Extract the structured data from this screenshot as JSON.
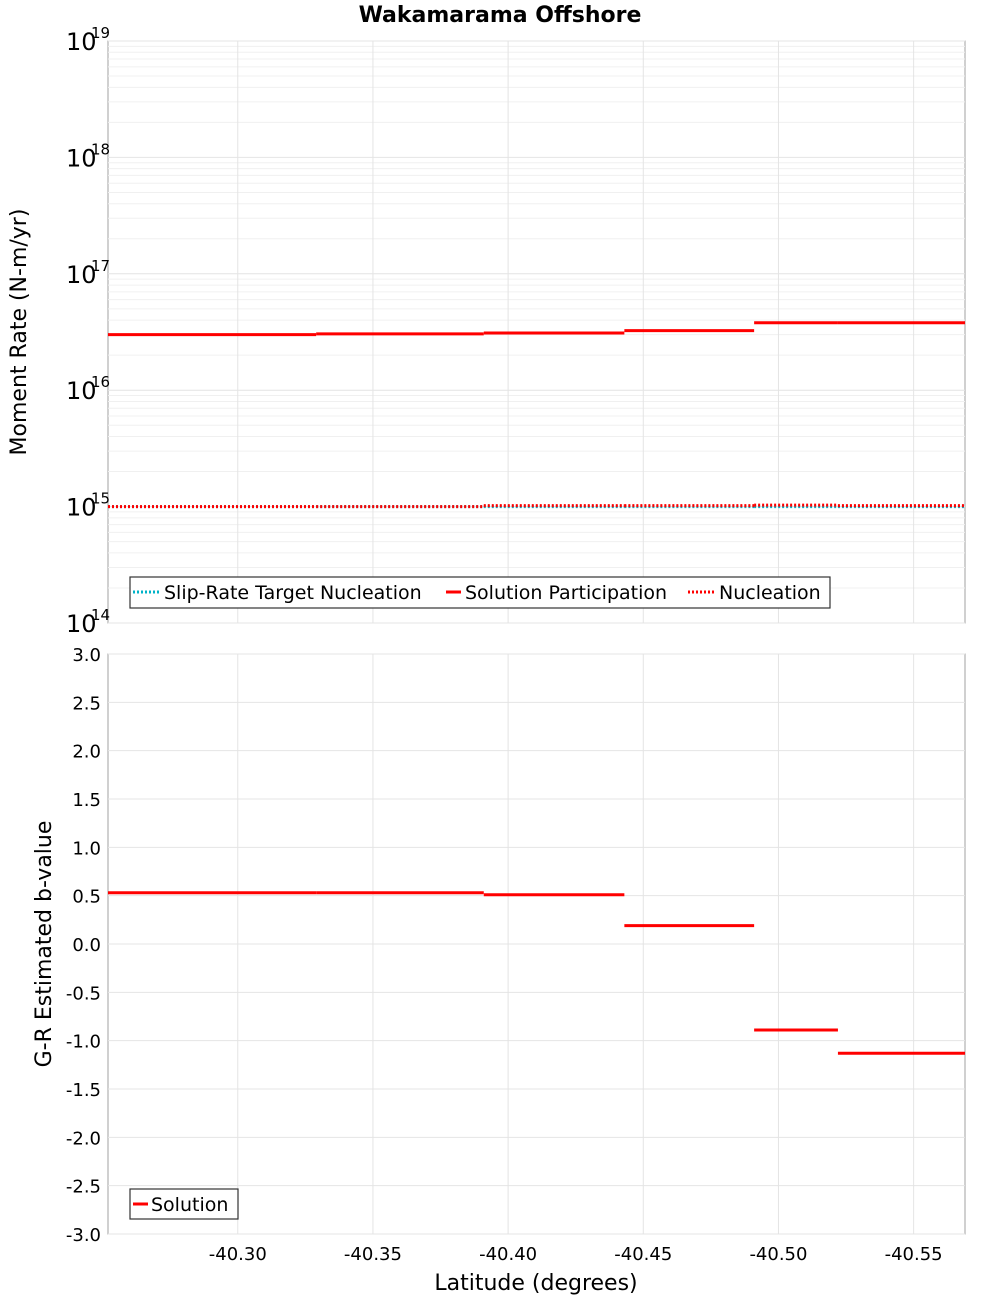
{
  "title": "Wakamarama Offshore",
  "xlabel": "Latitude (degrees)",
  "colors": {
    "solution": "#ff0000",
    "target": "#00b3c8",
    "frame": "#a0a0a0"
  },
  "chart_data": [
    {
      "type": "line",
      "name": "moment-rate",
      "yscale": "log",
      "ylabel": "Moment Rate (N-m/yr)",
      "xlim": [
        -40.252,
        -40.569
      ],
      "ylim_exp": [
        14,
        19
      ],
      "ytick_exps": [
        14,
        15,
        16,
        17,
        18,
        19
      ],
      "xticks": [
        -40.3,
        -40.35,
        -40.4,
        -40.45,
        -40.5,
        -40.55
      ],
      "legend": [
        "Slip-Rate Target Nucleation",
        "Solution Participation",
        "Nucleation"
      ],
      "legend_position": "bottom-left",
      "series": [
        {
          "name": "Slip-Rate Target Nucleation",
          "style": "dotted",
          "color": "#00b3c8",
          "segments": [
            {
              "x0": -40.252,
              "x1": -40.329,
              "y": 1000000000000000.0
            },
            {
              "x0": -40.329,
              "x1": -40.391,
              "y": 1000000000000000.0
            },
            {
              "x0": -40.391,
              "x1": -40.443,
              "y": 1000000000000000.0
            },
            {
              "x0": -40.443,
              "x1": -40.491,
              "y": 1000000000000000.0
            },
            {
              "x0": -40.491,
              "x1": -40.522,
              "y": 1000000000000000.0
            },
            {
              "x0": -40.522,
              "x1": -40.569,
              "y": 1000000000000000.0
            }
          ]
        },
        {
          "name": "Solution Participation",
          "style": "solid",
          "color": "#ff0000",
          "segments": [
            {
              "x0": -40.252,
              "x1": -40.329,
              "y": 3e+16
            },
            {
              "x0": -40.329,
              "x1": -40.391,
              "y": 3.05e+16
            },
            {
              "x0": -40.391,
              "x1": -40.443,
              "y": 3.1e+16
            },
            {
              "x0": -40.443,
              "x1": -40.491,
              "y": 3.25e+16
            },
            {
              "x0": -40.491,
              "x1": -40.522,
              "y": 3.8e+16
            },
            {
              "x0": -40.522,
              "x1": -40.569,
              "y": 3.8e+16
            }
          ]
        },
        {
          "name": "Nucleation",
          "style": "dotted",
          "color": "#ff0000",
          "segments": [
            {
              "x0": -40.252,
              "x1": -40.329,
              "y": 1000000000000000.0
            },
            {
              "x0": -40.329,
              "x1": -40.391,
              "y": 1000000000000000.0
            },
            {
              "x0": -40.391,
              "x1": -40.443,
              "y": 1020000000000000.0
            },
            {
              "x0": -40.443,
              "x1": -40.491,
              "y": 1020000000000000.0
            },
            {
              "x0": -40.491,
              "x1": -40.522,
              "y": 1030000000000000.0
            },
            {
              "x0": -40.522,
              "x1": -40.569,
              "y": 1020000000000000.0
            }
          ]
        }
      ]
    },
    {
      "type": "line",
      "name": "b-value",
      "yscale": "linear",
      "ylabel": "G-R Estimated b-value",
      "xlabel": "Latitude (degrees)",
      "xlim": [
        -40.252,
        -40.569
      ],
      "ylim": [
        -3.0,
        3.0
      ],
      "yticks": [
        "3.0",
        "2.5",
        "2.0",
        "1.5",
        "1.0",
        "0.5",
        "0.0",
        "-0.5",
        "-1.0",
        "-1.5",
        "-2.0",
        "-2.5",
        "-3.0"
      ],
      "xticks": [
        "-40.30",
        "-40.35",
        "-40.40",
        "-40.45",
        "-40.50",
        "-40.55"
      ],
      "legend": [
        "Solution"
      ],
      "legend_position": "bottom-left",
      "series": [
        {
          "name": "Solution",
          "style": "solid",
          "color": "#ff0000",
          "segments": [
            {
              "x0": -40.252,
              "x1": -40.329,
              "y": 0.53
            },
            {
              "x0": -40.329,
              "x1": -40.391,
              "y": 0.53
            },
            {
              "x0": -40.391,
              "x1": -40.443,
              "y": 0.51
            },
            {
              "x0": -40.443,
              "x1": -40.491,
              "y": 0.19
            },
            {
              "x0": -40.491,
              "x1": -40.522,
              "y": -0.89
            },
            {
              "x0": -40.522,
              "x1": -40.569,
              "y": -1.13
            }
          ]
        }
      ]
    }
  ]
}
